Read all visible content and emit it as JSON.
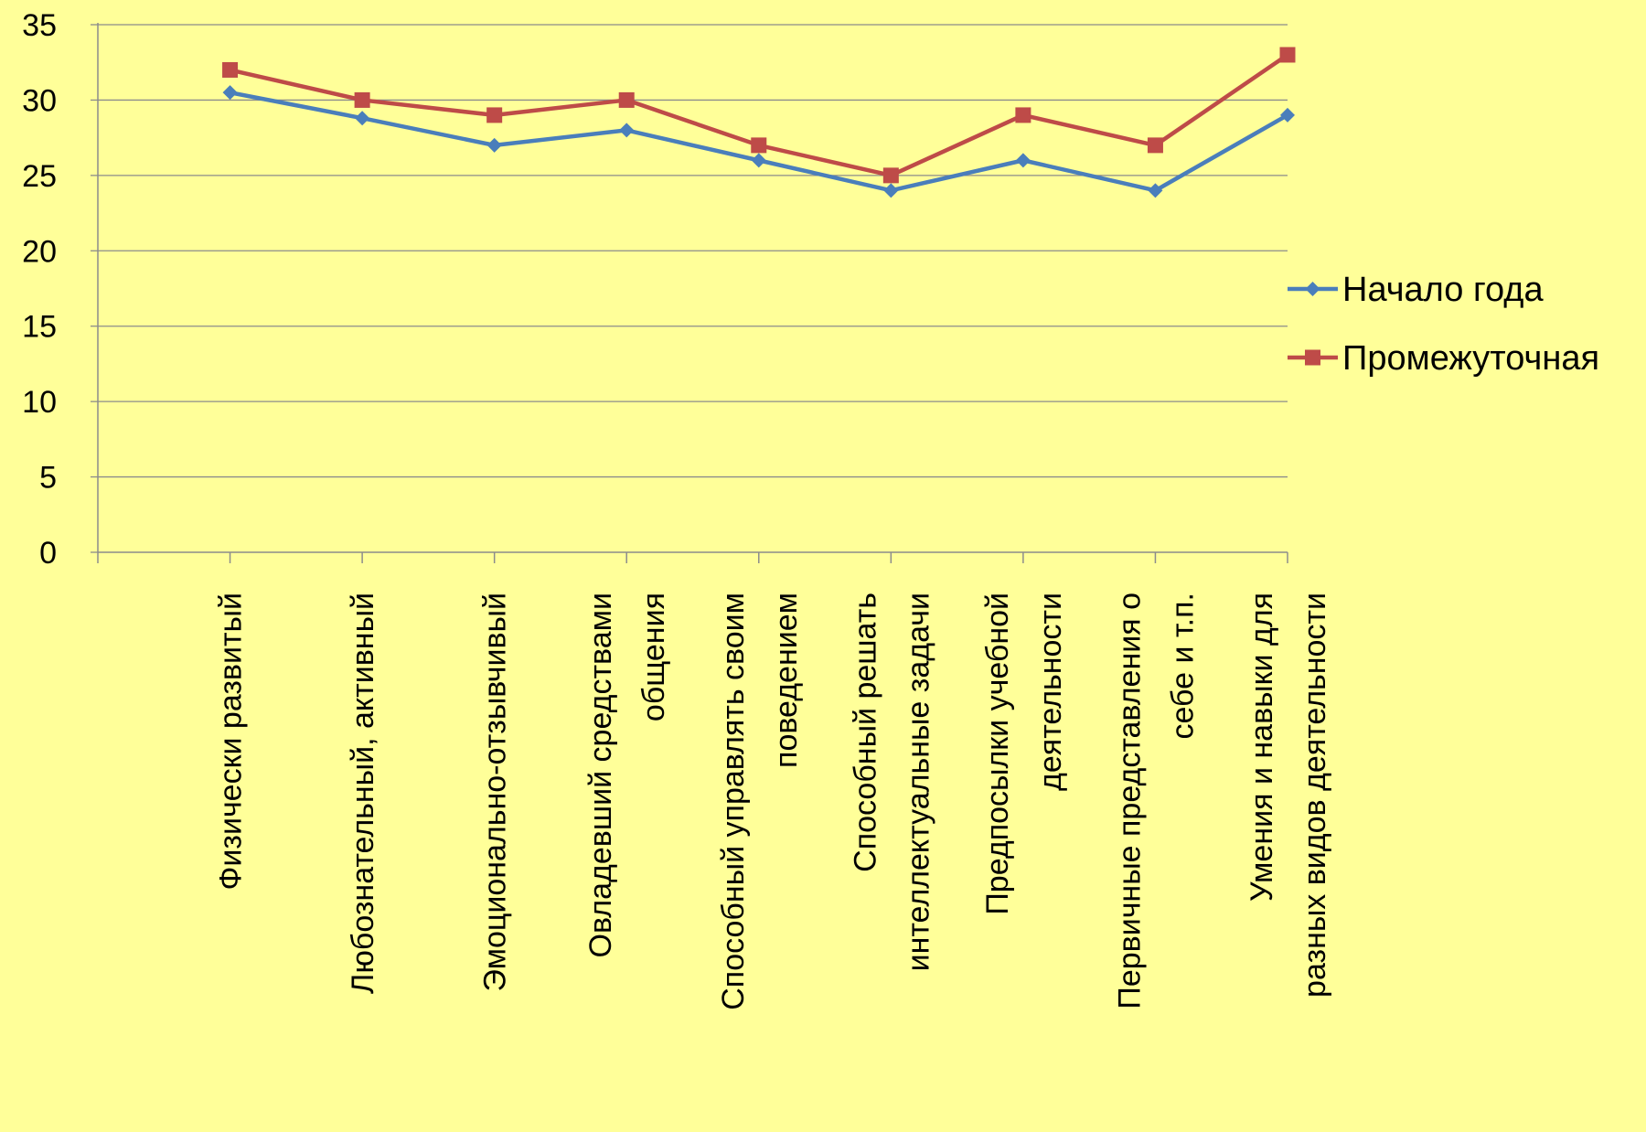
{
  "chart_data": {
    "type": "line",
    "categories": [
      [
        "Физически развитый"
      ],
      [
        "Любознательный, активный"
      ],
      [
        "Эмоционально-отзывчивый"
      ],
      [
        "Овладевший средствами",
        "общения"
      ],
      [
        "Способный управлять своим",
        "поведением"
      ],
      [
        "Способный решать",
        "интеллектуальные задачи"
      ],
      [
        "Предпосылки учебной",
        "деятельности"
      ],
      [
        "Первичные представления о",
        "себе и т.п."
      ],
      [
        "Умения и навыки для",
        "разных видов деятельности"
      ]
    ],
    "series": [
      {
        "name": "Начало года",
        "color": "#4A7EBB",
        "marker": "diamond",
        "values": [
          30.5,
          28.8,
          27,
          28,
          26,
          24,
          26,
          24,
          29
        ]
      },
      {
        "name": "Промежуточная",
        "color": "#BE4B48",
        "marker": "square",
        "values": [
          32,
          30,
          29,
          30,
          27,
          25,
          29,
          27,
          33
        ]
      }
    ],
    "ylim": [
      0,
      35
    ],
    "yticks": [
      0,
      5,
      10,
      15,
      20,
      25,
      30,
      35
    ],
    "ytick_labels": [
      "0",
      "5",
      "10",
      "15",
      "20",
      "25",
      "30",
      "35"
    ],
    "grid": true,
    "legend_position": "right",
    "title": "",
    "xlabel": "",
    "ylabel": ""
  }
}
